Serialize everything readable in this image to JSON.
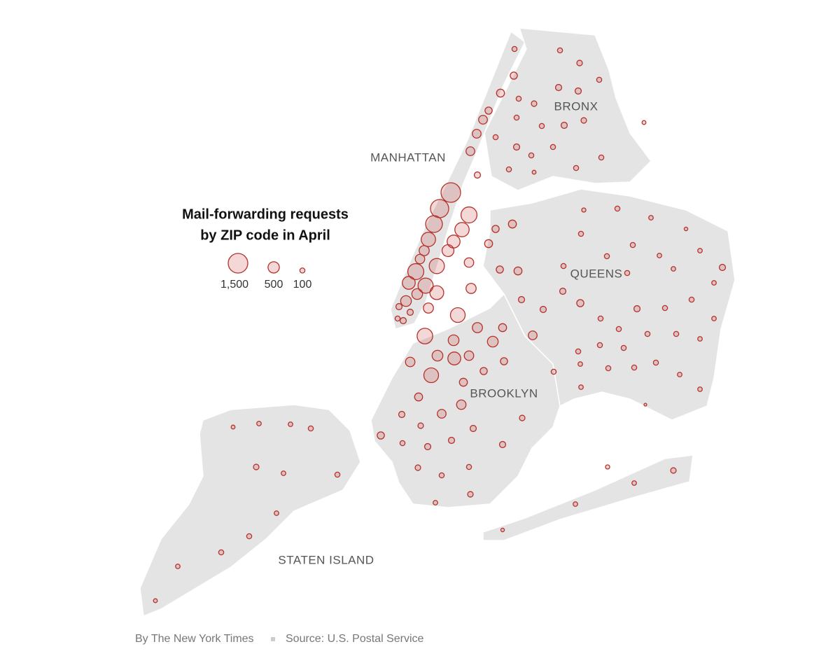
{
  "map": {
    "title": [
      "Mail-forwarding requests",
      "by ZIP code in April"
    ],
    "borough_labels": [
      "MANHATTAN",
      "BRONX",
      "QUEENS",
      "BROOKLYN",
      "STATEN ISLAND"
    ],
    "legend": [
      {
        "value": 1500,
        "label": "1,500"
      },
      500,
      100
    ],
    "requests": [
      1500,
      1300,
      1100,
      1000,
      800,
      800,
      650,
      550,
      400,
      350,
      900,
      1000,
      900,
      650,
      450,
      750,
      450,
      400,
      150,
      150,
      150,
      100,
      850,
      950,
      400,
      450,
      450,
      250,
      350,
      450,
      650,
      850,
      350,
      250,
      200,
      200,
      350,
      300,
      250,
      300,
      400,
      350,
      250,
      200,
      250,
      200,
      250,
      150,
      300,
      300,
      300,
      200,
      250,
      200,
      100,
      100,
      120,
      100,
      120,
      150,
      150,
      100,
      100,
      150,
      120,
      100,
      100,
      150,
      100,
      100,
      100,
      60,
      100,
      100,
      60,
      70,
      100,
      80,
      50,
      80,
      150,
      80,
      80,
      80,
      100,
      100,
      100,
      100,
      150,
      200,
      100,
      100,
      150,
      100,
      100,
      80,
      80,
      100,
      100,
      100,
      100,
      100,
      150,
      150,
      100,
      200,
      150,
      120,
      100,
      150,
      150,
      150,
      150,
      120,
      100,
      80,
      80,
      100,
      100,
      100,
      80,
      80,
      30,
      120,
      100,
      100,
      80,
      120,
      60,
      80,
      80,
      100,
      120,
      80,
      100,
      80,
      100,
      100,
      80,
      60,
      70,
      80,
      120,
      80,
      50
    ],
    "credit": "By The New York Times",
    "source": "Source: U.S. Postal Service"
  }
}
